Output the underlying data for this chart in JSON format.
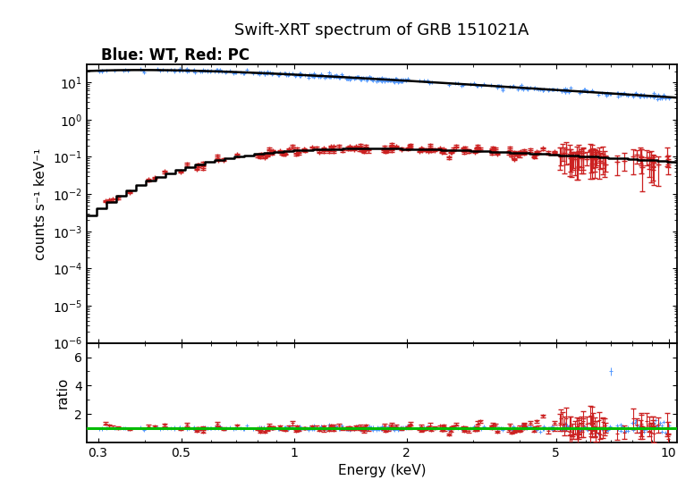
{
  "title": "Swift-XRT spectrum of GRB 151021A",
  "subtitle": "Blue: WT, Red: PC",
  "xlabel": "Energy (keV)",
  "ylabel_top": "counts s⁻¹ keV⁻¹",
  "ylabel_bottom": "ratio",
  "x_min": 0.28,
  "x_max": 10.5,
  "y_top_min": 1e-06,
  "y_top_max": 30,
  "y_bottom_min": 0.0,
  "y_bottom_max": 7,
  "wt_color": "#5599ff",
  "pc_color": "#cc2222",
  "model_color": "#000000",
  "ratio_line_color": "#00bb00",
  "bg_color": "#ffffff"
}
